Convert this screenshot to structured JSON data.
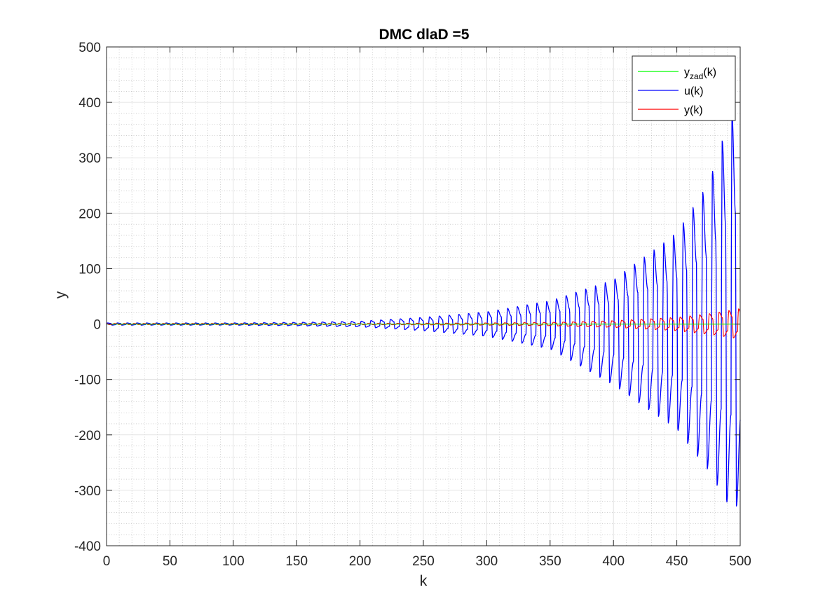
{
  "chart_data": {
    "type": "line",
    "title": "DMC dlaD =5",
    "xlabel": "k",
    "ylabel": "y",
    "xlim": [
      0,
      500
    ],
    "ylim": [
      -400,
      500
    ],
    "xticks": [
      0,
      50,
      100,
      150,
      200,
      250,
      300,
      350,
      400,
      450,
      500
    ],
    "yticks": [
      -400,
      -300,
      -200,
      -100,
      0,
      100,
      200,
      300,
      400,
      500
    ],
    "grid": true,
    "minor_grid": true,
    "legend_position": "top-right",
    "legend": [
      {
        "name_main": "y",
        "name_sub": "zad",
        "name_tail": "(k)",
        "color": "#00ff00"
      },
      {
        "name_main": "u(k)",
        "name_sub": "",
        "name_tail": "",
        "color": "#0000ff"
      },
      {
        "name_main": "y(k)",
        "name_sub": "",
        "name_tail": "",
        "color": "#ff0000"
      }
    ],
    "series": [
      {
        "id": "yzad",
        "color": "#00ff00",
        "description": "constant setpoint",
        "x": [
          0,
          500
        ],
        "y": [
          0,
          0
        ]
      },
      {
        "id": "u",
        "color": "#0000ff",
        "description": "oscillating control signal with period ~7.7 and growing envelope",
        "period": 7.7,
        "envelope_k": [
          0,
          50,
          100,
          150,
          200,
          250,
          300,
          350,
          400,
          450,
          475,
          490,
          500
        ],
        "envelope_upper": [
          2,
          2,
          2,
          3,
          5,
          12,
          22,
          42,
          80,
          165,
          255,
          360,
          422
        ],
        "envelope_lower": [
          -2,
          -2,
          -2,
          -3,
          -5,
          -12,
          -22,
          -45,
          -110,
          -190,
          -265,
          -325,
          -330
        ]
      },
      {
        "id": "y",
        "color": "#ff0000",
        "description": "process output oscillating with small growing amplitude",
        "period": 7.7,
        "envelope_k": [
          0,
          100,
          200,
          300,
          350,
          400,
          450,
          480,
          500
        ],
        "envelope_upper": [
          1,
          1,
          1,
          2,
          3,
          6,
          12,
          20,
          28
        ],
        "envelope_lower": [
          -1,
          -1,
          -1,
          -2,
          -3,
          -6,
          -12,
          -20,
          -27
        ]
      }
    ]
  }
}
